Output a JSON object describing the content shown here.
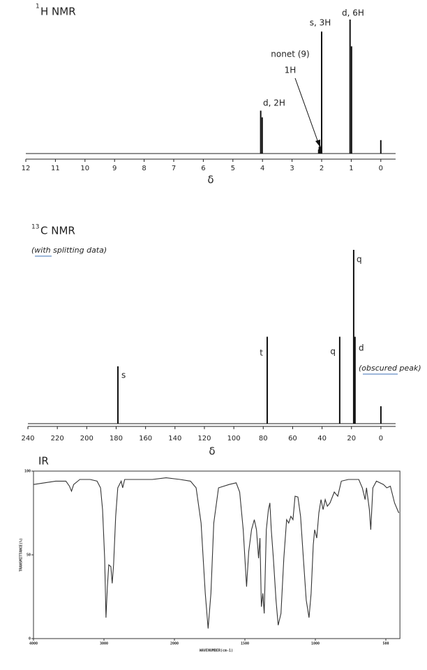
{
  "chart_data": [
    {
      "type": "spectrum",
      "title_superscript": "1",
      "title": "H NMR",
      "xlabel": "δ",
      "xlim": [
        12,
        -0.5
      ],
      "xticks": [
        12,
        11,
        10,
        9,
        8,
        7,
        6,
        5,
        4,
        3,
        2,
        1,
        0
      ],
      "ylim": [
        0,
        100
      ],
      "x": [
        4.06,
        4.01,
        2.1,
        2.08,
        2.06,
        2.04,
        2.02,
        2.0,
        1.04,
        0.99,
        0
      ],
      "values": [
        32,
        27,
        3,
        5,
        6,
        5,
        3,
        91,
        100,
        80,
        10
      ],
      "color": "#111111",
      "annotations": [
        "d, 2H",
        "nonet (9)",
        "1H",
        "s, 3H",
        "d, 6H"
      ]
    },
    {
      "type": "spectrum",
      "title_superscript": "13",
      "title": "C NMR",
      "subtitle": "(with splitting data)",
      "xlabel": "δ",
      "xlim": [
        240,
        -10
      ],
      "xticks": [
        240,
        220,
        200,
        180,
        160,
        140,
        120,
        100,
        80,
        60,
        40,
        20,
        0
      ],
      "ylim": [
        0,
        100
      ],
      "x": [
        178.8,
        77.3,
        28,
        18.5,
        17.6,
        0
      ],
      "values": [
        33,
        50,
        50,
        100,
        50,
        10
      ],
      "color": "#111111",
      "annotations": [
        "s",
        "t",
        "q",
        "q",
        "d",
        "(obscured peak)"
      ]
    },
    {
      "type": "line",
      "title": "IR",
      "xlabel": "WAVENUMBER(cm-1)",
      "ylabel": "TRANSMITTANCE(%)",
      "xlim": [
        4000,
        400
      ],
      "xticks": [
        4000,
        3000,
        2000,
        1500,
        1000,
        500
      ],
      "ylim": [
        0,
        100
      ],
      "yticks": [
        0,
        50,
        100
      ],
      "color": "#333333",
      "x": [
        4000,
        3686,
        3540,
        3490,
        3460,
        3430,
        3343,
        3196,
        3098,
        3049,
        3020,
        2990,
        2971,
        2951,
        2932,
        2902,
        2883,
        2863,
        2834,
        2804,
        2755,
        2735,
        2706,
        2510,
        2314,
        2118,
        1960,
        1886,
        1846,
        1811,
        1781,
        1761,
        1741,
        1721,
        1687,
        1612,
        1562,
        1537,
        1512,
        1488,
        1473,
        1453,
        1433,
        1418,
        1403,
        1393,
        1383,
        1373,
        1363,
        1348,
        1333,
        1323,
        1313,
        1298,
        1279,
        1264,
        1244,
        1224,
        1204,
        1189,
        1174,
        1159,
        1144,
        1124,
        1105,
        1085,
        1065,
        1045,
        1030,
        1015,
        1005,
        990,
        975,
        960,
        945,
        930,
        915,
        896,
        866,
        841,
        816,
        766,
        692,
        667,
        647,
        637,
        617,
        607,
        592,
        567,
        517,
        493,
        468,
        438,
        408
      ],
      "values": [
        92,
        94,
        94,
        91,
        88,
        92,
        95,
        95,
        94,
        90,
        77,
        48,
        12.5,
        31,
        44,
        43,
        33,
        44,
        73,
        90,
        94,
        90,
        95,
        95,
        95,
        96,
        95,
        94,
        90,
        69,
        27,
        6,
        27,
        69,
        90,
        92,
        93,
        87.5,
        65,
        31,
        52,
        65,
        71,
        65,
        48,
        60,
        19,
        27,
        15,
        65,
        77,
        81,
        65,
        48,
        23,
        8,
        15,
        48,
        71,
        69,
        73,
        71,
        85,
        84.5,
        73,
        48,
        23,
        12.5,
        27,
        56,
        65,
        60,
        75,
        83,
        77,
        83,
        79,
        81,
        87.5,
        85,
        94,
        95,
        95,
        90,
        83,
        90,
        77,
        65,
        90,
        94,
        92,
        90,
        91,
        81,
        75
      ]
    }
  ]
}
